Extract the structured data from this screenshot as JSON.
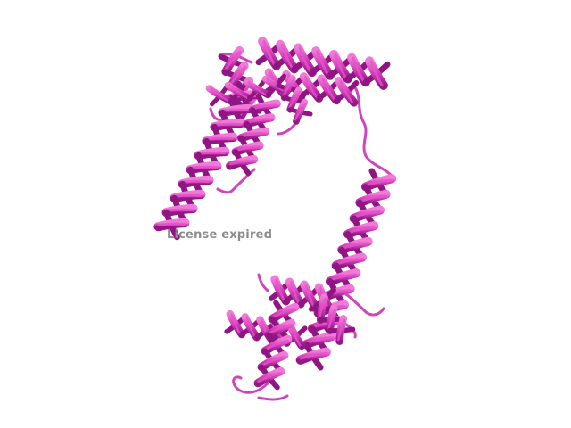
{
  "viewer": {
    "watermark_text": "License expired"
  },
  "structure": {
    "representation": "cartoon",
    "colors": {
      "helix_light": "#e455c9",
      "helix_mid": "#c92fb0",
      "helix_dark": "#8e1582",
      "coil": "#d244bd",
      "background": "#ffffff"
    }
  }
}
